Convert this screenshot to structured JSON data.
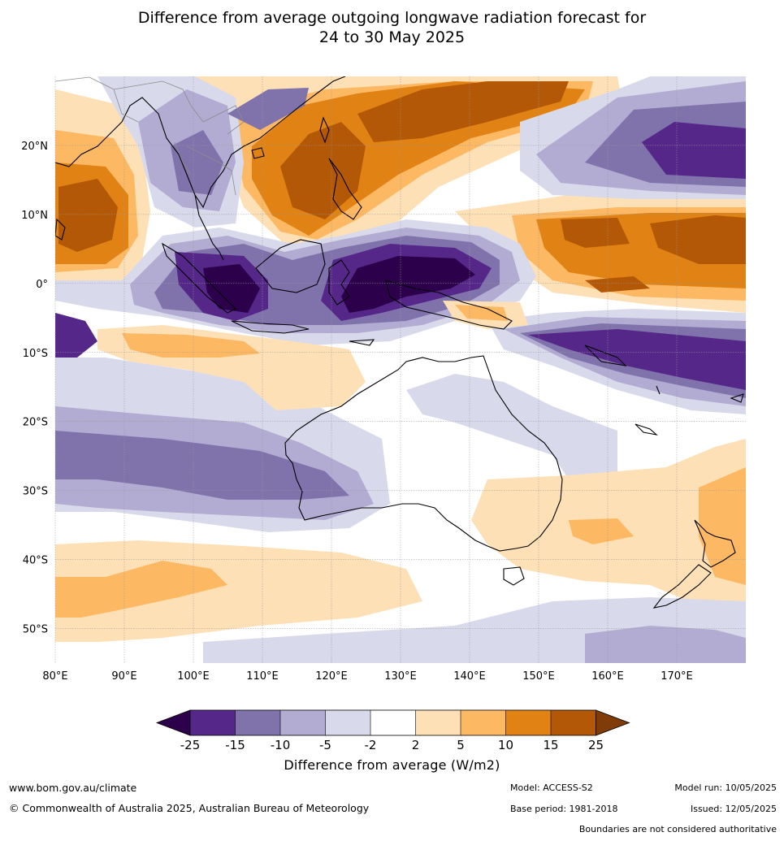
{
  "title": {
    "line1": "Difference from average outgoing longwave radiation forecast for",
    "line2": "24 to 30 May 2025"
  },
  "map": {
    "lon_ticks": [
      "80°E",
      "90°E",
      "100°E",
      "110°E",
      "120°E",
      "130°E",
      "140°E",
      "150°E",
      "160°E",
      "170°E"
    ],
    "lat_ticks": [
      "20°N",
      "10°N",
      "0°",
      "10°S",
      "20°S",
      "30°S",
      "40°S",
      "50°S"
    ],
    "lon_range": [
      80,
      180
    ],
    "lat_range": [
      -55,
      30
    ],
    "grid": true,
    "ocean_color": "#ffffff",
    "coast_color": "#000000",
    "boundary_color": "#8c8c8c"
  },
  "legend": {
    "tick_labels": [
      "-25",
      "-15",
      "-10",
      "-5",
      "-2",
      "2",
      "5",
      "10",
      "15",
      "25"
    ],
    "colors": [
      "#2d004b",
      "#542788",
      "#8073ac",
      "#b2abd2",
      "#d8daeb",
      "#ffffff",
      "#fee0b6",
      "#fdb863",
      "#e08214",
      "#b35806",
      "#7f3b08"
    ],
    "title": "Difference from average (W/m2)"
  },
  "footer": {
    "website": "www.bom.gov.au/climate",
    "copyright": "© Commonwealth of Australia 2025, Australian Bureau of Meteorology",
    "model": "Model: ACCESS-S2",
    "base_period": "Base period: 1981-2018",
    "model_run": "Model run: 10/05/2025",
    "issued": "Issued: 12/05/2025",
    "disclaimer": "Boundaries are not considered authoritative"
  }
}
